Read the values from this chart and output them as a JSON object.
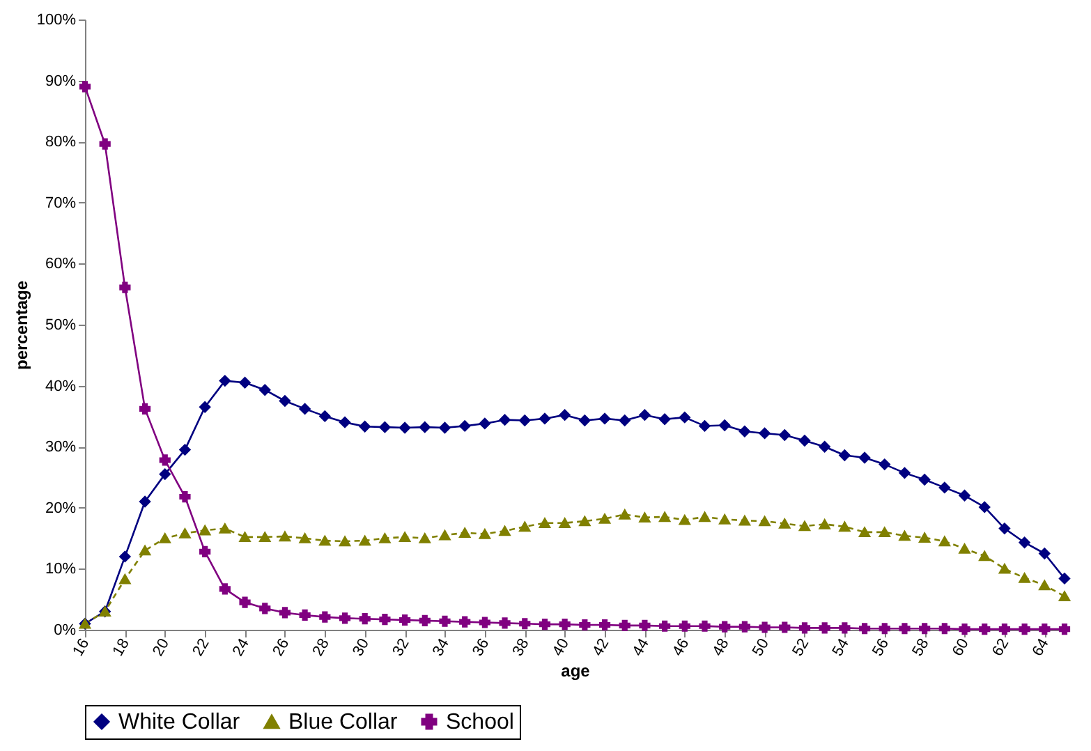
{
  "chart_data": {
    "type": "line",
    "xlabel": "age",
    "ylabel": "percentage",
    "x": [
      16,
      17,
      18,
      19,
      20,
      21,
      22,
      23,
      24,
      25,
      26,
      27,
      28,
      29,
      30,
      31,
      32,
      33,
      34,
      35,
      36,
      37,
      38,
      39,
      40,
      41,
      42,
      43,
      44,
      45,
      46,
      47,
      48,
      49,
      50,
      51,
      52,
      53,
      54,
      55,
      56,
      57,
      58,
      59,
      60,
      61,
      62,
      63,
      64,
      65
    ],
    "xlim": [
      16,
      65
    ],
    "xticks": [
      16,
      18,
      20,
      22,
      24,
      26,
      28,
      30,
      32,
      34,
      36,
      38,
      40,
      42,
      44,
      46,
      48,
      50,
      52,
      54,
      56,
      58,
      60,
      62,
      64
    ],
    "ylim": [
      0,
      100
    ],
    "yticks": [
      {
        "value": 0,
        "label": "0%"
      },
      {
        "value": 10,
        "label": "10%"
      },
      {
        "value": 20,
        "label": "20%"
      },
      {
        "value": 30,
        "label": "30%"
      },
      {
        "value": 40,
        "label": "40%"
      },
      {
        "value": 50,
        "label": "50%"
      },
      {
        "value": 60,
        "label": "60%"
      },
      {
        "value": 70,
        "label": "70%"
      },
      {
        "value": 80,
        "label": "80%"
      },
      {
        "value": 90,
        "label": "90%"
      },
      {
        "value": 100,
        "label": "100%"
      }
    ],
    "grid": false,
    "legend": "bottom",
    "series": [
      {
        "name": "White Collar",
        "color": "#000080",
        "marker": "diamond",
        "line_style": "solid",
        "values": [
          1,
          3,
          12,
          21,
          25.5,
          29.5,
          36.5,
          40.8,
          40.5,
          39.3,
          37.5,
          36.2,
          35,
          34,
          33.3,
          33.2,
          33.1,
          33.2,
          33.1,
          33.4,
          33.8,
          34.4,
          34.3,
          34.6,
          35.2,
          34.3,
          34.6,
          34.3,
          35.2,
          34.5,
          34.8,
          33.4,
          33.5,
          32.5,
          32.2,
          31.9,
          31,
          30,
          28.6,
          28.2,
          27.1,
          25.7,
          24.6,
          23.3,
          22,
          20.1,
          16.6,
          14.3,
          12.5,
          8.4
        ]
      },
      {
        "name": "Blue Collar",
        "color": "#808000",
        "marker": "triangle",
        "line_style": "dashed",
        "values": [
          1,
          3,
          8.3,
          13,
          15,
          15.8,
          16.3,
          16.6,
          15.2,
          15.2,
          15.3,
          15,
          14.6,
          14.5,
          14.6,
          15,
          15.2,
          15,
          15.5,
          15.9,
          15.7,
          16.2,
          16.9,
          17.5,
          17.5,
          17.8,
          18.2,
          18.9,
          18.4,
          18.5,
          18,
          18.5,
          18.1,
          17.9,
          17.8,
          17.4,
          17,
          17.3,
          16.9,
          16,
          16,
          15.4,
          15.1,
          14.5,
          13.3,
          12.1,
          10,
          8.5,
          7.3,
          5.5
        ]
      },
      {
        "name": "School",
        "color": "#800080",
        "marker": "cross",
        "line_style": "solid",
        "values": [
          89,
          79.6,
          56.1,
          36.2,
          27.8,
          21.8,
          12.8,
          6.7,
          4.5,
          3.5,
          2.8,
          2.4,
          2.1,
          1.9,
          1.8,
          1.7,
          1.6,
          1.5,
          1.4,
          1.3,
          1.2,
          1.1,
          1,
          0.9,
          0.9,
          0.8,
          0.8,
          0.7,
          0.7,
          0.6,
          0.6,
          0.6,
          0.5,
          0.5,
          0.4,
          0.4,
          0.3,
          0.3,
          0.3,
          0.2,
          0.2,
          0.2,
          0.2,
          0.2,
          0.1,
          0.1,
          0.1,
          0.1,
          0.1,
          0.1
        ]
      }
    ]
  }
}
